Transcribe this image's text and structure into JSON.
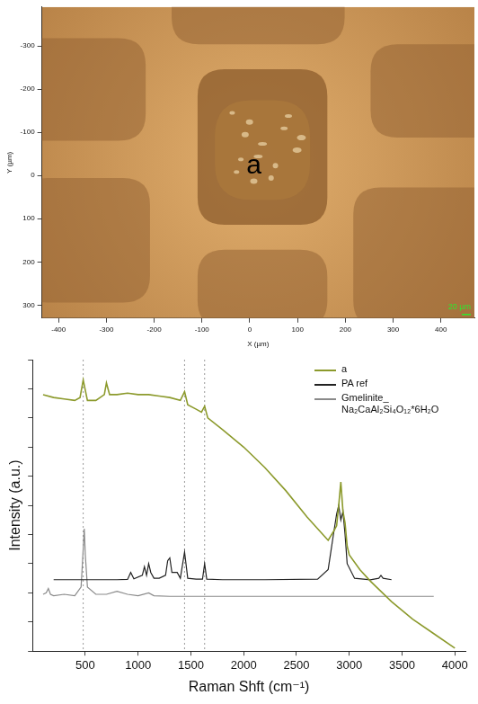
{
  "chart_data": [
    {
      "type": "image",
      "xlabel": "X (µm)",
      "ylabel": "Y (µm)",
      "xlim": [
        -435,
        470
      ],
      "ylim": [
        330,
        -390
      ],
      "xticks": [
        -400,
        -300,
        -200,
        -100,
        0,
        100,
        200,
        300,
        400
      ],
      "yticks": [
        -300,
        -200,
        -100,
        0,
        100,
        200,
        300
      ],
      "annotations": [
        "a",
        "20 µm"
      ],
      "grid": false
    },
    {
      "type": "line",
      "xlabel": "Raman Shft (cm⁻¹)",
      "ylabel": "Intensity (a.u.)",
      "xlim": [
        0,
        4100
      ],
      "ylim": [
        0,
        100
      ],
      "xticks": [
        500,
        1000,
        1500,
        2000,
        2500,
        3000,
        3500,
        4000
      ],
      "yticks": [
        0,
        10,
        20,
        30,
        40,
        50,
        60,
        70,
        80,
        90,
        100
      ],
      "tick_labels": "x",
      "grid": false,
      "legend": "upper right",
      "reference_lines": [
        480,
        1440,
        1630
      ],
      "series": [
        {
          "name": "a",
          "color": "#8c9a2c",
          "x": [
            100,
            200,
            300,
            400,
            450,
            480,
            520,
            600,
            680,
            700,
            730,
            800,
            900,
            1000,
            1100,
            1200,
            1300,
            1400,
            1440,
            1470,
            1550,
            1600,
            1630,
            1660,
            1800,
            2000,
            2200,
            2400,
            2600,
            2750,
            2800,
            2850,
            2880,
            2900,
            2920,
            2940,
            2960,
            2980,
            3000,
            3100,
            3200,
            3400,
            3600,
            3800,
            4000
          ],
          "values": [
            88,
            87,
            86.5,
            86,
            87,
            93,
            86,
            86,
            88,
            92,
            88,
            88,
            88.5,
            88,
            88,
            87.5,
            87,
            86,
            89,
            84.5,
            83,
            82,
            84,
            80,
            76,
            70,
            63,
            55,
            46,
            40,
            38,
            41,
            43,
            50,
            58,
            48,
            44,
            36,
            33,
            28,
            24,
            17,
            11,
            6,
            1
          ]
        },
        {
          "name": "PA ref",
          "color": "#222222",
          "x": [
            200,
            400,
            600,
            800,
            900,
            930,
            960,
            1040,
            1060,
            1080,
            1100,
            1120,
            1150,
            1200,
            1260,
            1280,
            1300,
            1320,
            1370,
            1400,
            1440,
            1470,
            1550,
            1610,
            1630,
            1650,
            1800,
            2200,
            2700,
            2800,
            2850,
            2880,
            2900,
            2920,
            2940,
            2960,
            2980,
            3050,
            3200,
            3280,
            3300,
            3320,
            3400
          ],
          "values": [
            24.5,
            24.5,
            24.5,
            24.5,
            24.6,
            27,
            24.8,
            26,
            29,
            26,
            30,
            27,
            25,
            25,
            26,
            31,
            32,
            27,
            27,
            25,
            34,
            25,
            24.7,
            24.7,
            30,
            24.7,
            24.5,
            24.5,
            24.7,
            28,
            40,
            47,
            50,
            45,
            48,
            40,
            30,
            25,
            24.5,
            25,
            26,
            25,
            24.5
          ]
        },
        {
          "name": "Gmelinite_ Na₂CaAl₂Si₄O₁₂*6H₂O",
          "color": "#8a8a8a",
          "x": [
            100,
            130,
            150,
            170,
            200,
            300,
            400,
            460,
            480,
            490,
            500,
            520,
            600,
            700,
            800,
            900,
            1000,
            1100,
            1150,
            1300,
            2000,
            3000,
            3800
          ],
          "values": [
            19.5,
            20,
            21.5,
            19.5,
            19,
            19.5,
            19,
            22,
            35,
            42,
            33,
            22,
            19.5,
            19.5,
            20.5,
            19.5,
            19,
            20,
            19,
            18.8,
            18.8,
            18.8,
            18.8
          ]
        }
      ]
    }
  ]
}
